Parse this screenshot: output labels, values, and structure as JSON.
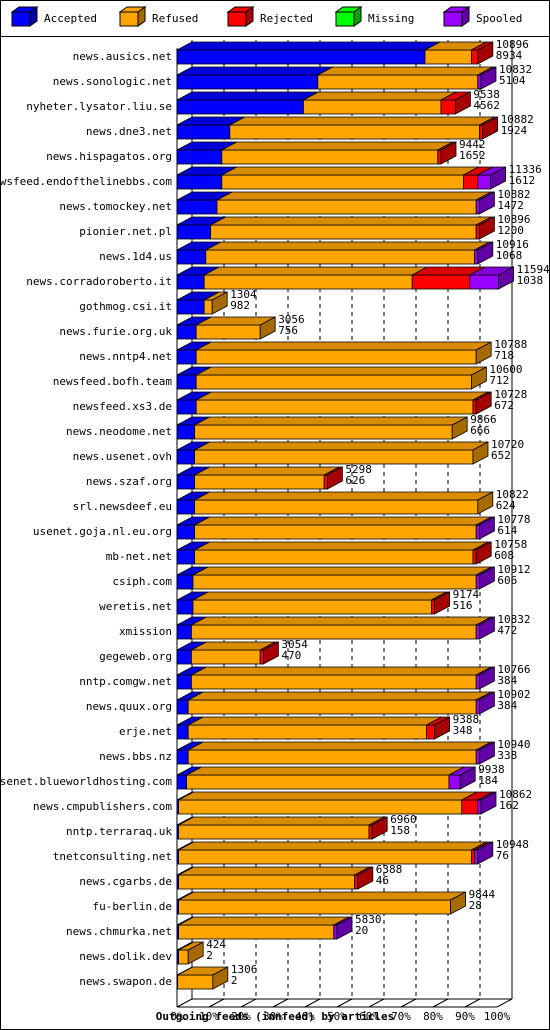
{
  "chart_data": {
    "type": "bar3d",
    "orientation": "horizontal",
    "stacked": true,
    "title": "Outgoing feeds (innfeed) by articles",
    "categories": [
      "news.ausics.net",
      "news.sonologic.net",
      "nyheter.lysator.liu.se",
      "news.dne3.net",
      "news.hispagatos.org",
      "newsfeed.endofthelinebbs.com",
      "news.tomockey.net",
      "pionier.net.pl",
      "news.1d4.us",
      "news.corradoroberto.it",
      "gothmog.csi.it",
      "news.furie.org.uk",
      "news.nntp4.net",
      "newsfeed.bofh.team",
      "newsfeed.xs3.de",
      "news.neodome.net",
      "news.usenet.ovh",
      "news.szaf.org",
      "srl.newsdeef.eu",
      "usenet.goja.nl.eu.org",
      "mb-net.net",
      "csiph.com",
      "weretis.net",
      "xmission",
      "gegeweb.org",
      "nntp.comgw.net",
      "news.quux.org",
      "erje.net",
      "news.bbs.nz",
      "usenet.blueworldhosting.com",
      "news.cmpublishers.com",
      "nntp.terraraq.uk",
      "tnetconsulting.net",
      "news.cgarbs.de",
      "fu-berlin.de",
      "news.chmurka.net",
      "news.dolik.dev",
      "news.swapon.de"
    ],
    "series": [
      {
        "name": "Accepted",
        "color": "#0000ff",
        "values": [
          77.5,
          44,
          39.5,
          16.5,
          14,
          14,
          12.5,
          10.5,
          9,
          8.5,
          8.5,
          6,
          6,
          6,
          6,
          5.5,
          5.5,
          5.5,
          5.5,
          5.5,
          5.5,
          5,
          5,
          4.5,
          4.5,
          4.5,
          3.5,
          3.5,
          3.5,
          3,
          0.5,
          0.5,
          0.5,
          0.5,
          0.5,
          0.5,
          0.5,
          0.2
        ]
      },
      {
        "name": "Refused",
        "color": "#ffa500",
        "values": [
          14.5,
          50,
          43,
          78,
          67.5,
          75.5,
          81,
          83,
          84,
          65,
          2.5,
          20,
          87.5,
          86,
          86.5,
          80.5,
          87,
          40.5,
          88.5,
          88,
          87,
          88.5,
          74.5,
          89,
          21.5,
          89,
          90,
          74.5,
          90,
          82,
          88.5,
          59.5,
          91.5,
          55,
          85,
          48.5,
          3,
          11
        ]
      },
      {
        "name": "Rejected",
        "color": "#ff0000",
        "values": [
          2,
          0,
          4.5,
          1,
          1,
          4.5,
          0,
          1,
          0,
          18,
          0,
          0,
          0,
          0,
          1,
          0,
          0,
          1,
          0,
          0,
          1,
          0,
          1,
          0,
          1,
          0,
          0,
          2.5,
          0,
          0,
          5,
          1,
          1,
          1,
          0,
          0,
          0,
          0
        ]
      },
      {
        "name": "Missing",
        "color": "#00ff00",
        "values": [
          0,
          0,
          0,
          0,
          0,
          0,
          0,
          0,
          0,
          0,
          0,
          0,
          0,
          0,
          0,
          0,
          0,
          0,
          0,
          0,
          0,
          0,
          0,
          0,
          0,
          0,
          0,
          0,
          0,
          0,
          0,
          0,
          0,
          0,
          0,
          0,
          0,
          0
        ]
      },
      {
        "name": "Spooled",
        "color": "#9900ff",
        "values": [
          0,
          1,
          0,
          0,
          0,
          4,
          1,
          0,
          1,
          9,
          0,
          0,
          0,
          0,
          0,
          0,
          0,
          0,
          0,
          1,
          0,
          1,
          0,
          1,
          0,
          1,
          1,
          0,
          1,
          3.5,
          1,
          0,
          1,
          0,
          0,
          1,
          0,
          0
        ]
      }
    ],
    "labels_top": [
      10896,
      10832,
      9538,
      10882,
      9442,
      11336,
      10882,
      10896,
      10916,
      11594,
      1304,
      3056,
      10788,
      10600,
      10728,
      9866,
      10720,
      5298,
      10822,
      10778,
      10758,
      10912,
      9174,
      10832,
      3054,
      10766,
      10902,
      9388,
      10940,
      9938,
      10862,
      6960,
      10948,
      6388,
      9844,
      5830,
      424,
      1306
    ],
    "labels_bottom": [
      8934,
      5104,
      4562,
      1924,
      1652,
      1612,
      1472,
      1200,
      1068,
      1038,
      982,
      756,
      718,
      712,
      672,
      666,
      652,
      626,
      624,
      614,
      608,
      606,
      516,
      472,
      470,
      384,
      384,
      348,
      338,
      184,
      162,
      158,
      76,
      46,
      28,
      20,
      2,
      2
    ],
    "xlim": [
      0,
      100
    ],
    "xticks": [
      {
        "value": 0,
        "label": "0%"
      },
      {
        "value": 10,
        "label": "10%"
      },
      {
        "value": 20,
        "label": "20%"
      },
      {
        "value": 30,
        "label": "30%"
      },
      {
        "value": 40,
        "label": "40%"
      },
      {
        "value": 50,
        "label": "50%"
      },
      {
        "value": 60,
        "label": "60%"
      },
      {
        "value": 70,
        "label": "70%"
      },
      {
        "value": 80,
        "label": "80%"
      },
      {
        "value": 90,
        "label": "90%"
      },
      {
        "value": 100,
        "label": "100%"
      }
    ],
    "grid": true,
    "legend": "top"
  }
}
